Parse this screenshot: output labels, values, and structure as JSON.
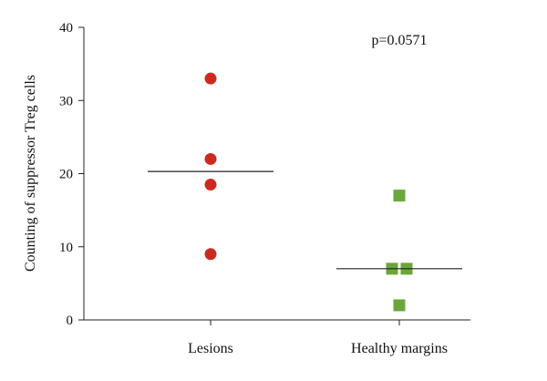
{
  "chart_data": {
    "type": "scatter",
    "ylabel": "Counting of suppressor Treg cells",
    "xlabel": "",
    "title": "",
    "ylim": [
      0,
      40
    ],
    "y_ticks": [
      0,
      10,
      20,
      30,
      40
    ],
    "categories": [
      "Lesions",
      "Healthy margins"
    ],
    "series": [
      {
        "category": "Lesions",
        "values": [
          33,
          22,
          18.5,
          9
        ],
        "mean": 20.3,
        "marker": "circle",
        "color": "#cc2a1e"
      },
      {
        "category": "Healthy margins",
        "values": [
          17,
          7,
          7,
          2
        ],
        "mean": 7,
        "marker": "square",
        "color": "#6aa63c"
      }
    ],
    "annotation": "p=0.0571",
    "grid": false
  }
}
